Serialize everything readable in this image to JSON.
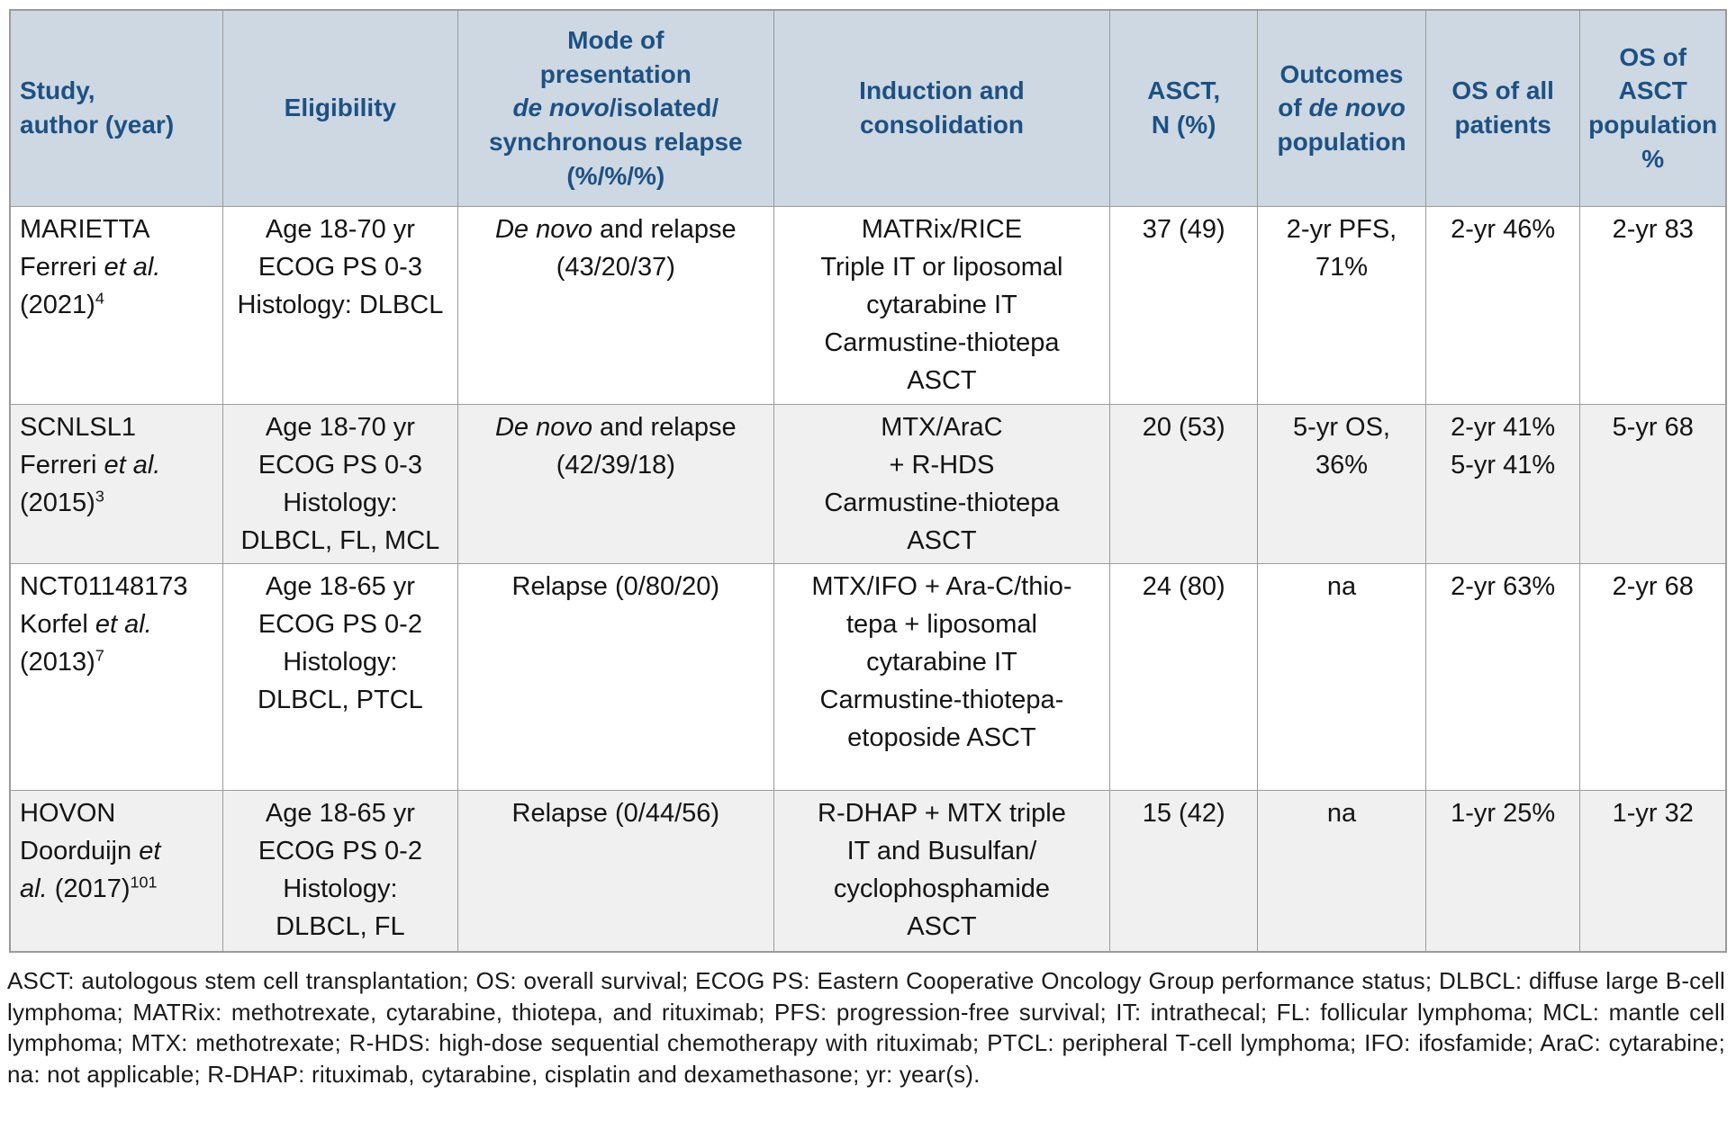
{
  "colors": {
    "header_bg": "#cdd8e2",
    "header_text": "#1d5184",
    "row_bg": "#ffffff",
    "row_alt_bg": "#f0f0f0",
    "border": "#9b9b9b",
    "body_text": "#141414",
    "footnote_text": "#1a1a1a",
    "page_bg": "#ffffff"
  },
  "table": {
    "headers": [
      {
        "rich": [
          {
            "t": "Study,\nauthor (year)"
          }
        ]
      },
      {
        "rich": [
          {
            "t": "Eligibility"
          }
        ]
      },
      {
        "rich": [
          {
            "t": "Mode of\npresentation\n"
          },
          {
            "t": "de novo",
            "i": true
          },
          {
            "t": "/isolated/\nsynchronous relapse\n(%/%/%)"
          }
        ]
      },
      {
        "rich": [
          {
            "t": "Induction and\nconsolidation"
          }
        ]
      },
      {
        "rich": [
          {
            "t": "ASCT,\nN (%)"
          }
        ]
      },
      {
        "rich": [
          {
            "t": "Outcomes\nof "
          },
          {
            "t": "de novo",
            "i": true
          },
          {
            "t": "\npopulation"
          }
        ]
      },
      {
        "rich": [
          {
            "t": "OS of all\npatients"
          }
        ]
      },
      {
        "rich": [
          {
            "t": "OS of\nASCT\npopulation\n%"
          }
        ]
      }
    ],
    "rows": [
      {
        "cells": [
          [
            {
              "t": "MARIETTA\nFerreri "
            },
            {
              "t": "et al.",
              "i": true
            },
            {
              "t": "\n(2021)"
            },
            {
              "t": "4",
              "sup": true
            }
          ],
          [
            {
              "t": "Age 18-70 yr\nECOG PS 0-3\nHistology: DLBCL"
            }
          ],
          [
            {
              "t": "De novo",
              "i": true
            },
            {
              "t": " and relapse\n(43/20/37)"
            }
          ],
          [
            {
              "t": "MATRix/RICE\nTriple IT or liposomal\ncytarabine IT\nCarmustine-thiotepa\nASCT"
            }
          ],
          [
            {
              "t": "37 (49)"
            }
          ],
          [
            {
              "t": "2-yr PFS,\n71%"
            }
          ],
          [
            {
              "t": "2-yr 46%"
            }
          ],
          [
            {
              "t": "2-yr 83"
            }
          ]
        ]
      },
      {
        "cells": [
          [
            {
              "t": "SCNLSL1\nFerreri "
            },
            {
              "t": "et al.",
              "i": true
            },
            {
              "t": "\n(2015)"
            },
            {
              "t": "3",
              "sup": true
            }
          ],
          [
            {
              "t": "Age 18-70 yr\nECOG PS 0-3\nHistology:\nDLBCL, FL, MCL"
            }
          ],
          [
            {
              "t": "De novo",
              "i": true
            },
            {
              "t": " and relapse\n(42/39/18)"
            }
          ],
          [
            {
              "t": "MTX/AraC\n+ R-HDS\nCarmustine-thiotepa\nASCT"
            }
          ],
          [
            {
              "t": "20 (53)"
            }
          ],
          [
            {
              "t": "5-yr OS,\n36%"
            }
          ],
          [
            {
              "t": "2-yr 41%\n5-yr 41%"
            }
          ],
          [
            {
              "t": "5-yr 68"
            }
          ]
        ]
      },
      {
        "cells": [
          [
            {
              "t": "NCT01148173\nKorfel "
            },
            {
              "t": "et al.",
              "i": true
            },
            {
              "t": "\n(2013)"
            },
            {
              "t": "7",
              "sup": true
            }
          ],
          [
            {
              "t": "Age 18-65 yr\nECOG PS 0-2\nHistology:\nDLBCL, PTCL"
            }
          ],
          [
            {
              "t": "Relapse (0/80/20)"
            }
          ],
          [
            {
              "t": "MTX/IFO + Ara-C/thio-\ntepa + liposomal\ncytarabine IT\nCarmustine-thiotepa-\netoposide ASCT"
            }
          ],
          [
            {
              "t": "24 (80)"
            }
          ],
          [
            {
              "t": "na"
            }
          ],
          [
            {
              "t": "2-yr 63%"
            }
          ],
          [
            {
              "t": "2-yr 68"
            }
          ]
        ]
      },
      {
        "cells": [
          [
            {
              "t": "HOVON\nDoorduijn "
            },
            {
              "t": "et\nal.",
              "i": true
            },
            {
              "t": " (2017)"
            },
            {
              "t": "101",
              "sup": true
            }
          ],
          [
            {
              "t": "Age 18-65 yr\nECOG PS 0-2\nHistology:\nDLBCL, FL"
            }
          ],
          [
            {
              "t": "Relapse (0/44/56)"
            }
          ],
          [
            {
              "t": "R-DHAP + MTX triple\nIT and Busulfan/\ncyclophosphamide\nASCT"
            }
          ],
          [
            {
              "t": "15 (42)"
            }
          ],
          [
            {
              "t": "na"
            }
          ],
          [
            {
              "t": "1-yr 25%"
            }
          ],
          [
            {
              "t": "1-yr 32"
            }
          ]
        ]
      }
    ]
  },
  "footnote": "ASCT: autologous stem cell transplantation; OS: overall survival; ECOG PS: Eastern Cooperative Oncology Group performance status; DLBCL: diffuse large B-cell lymphoma; MATRix: methotrexate, cytarabine, thiotepa, and rituximab; PFS: progression-free survival; IT: intrathecal; FL: follicular lymphoma; MCL: mantle cell lymphoma; MTX: methotrexate; R-HDS: high-dose sequential chemotherapy with rituximab; PTCL: peripheral T-cell lymphoma; IFO: ifosfamide; AraC: cytarabine; na: not applicable; R-DHAP: rituximab, cytarabine, cisplatin and dexamethasone; yr: year(s)."
}
